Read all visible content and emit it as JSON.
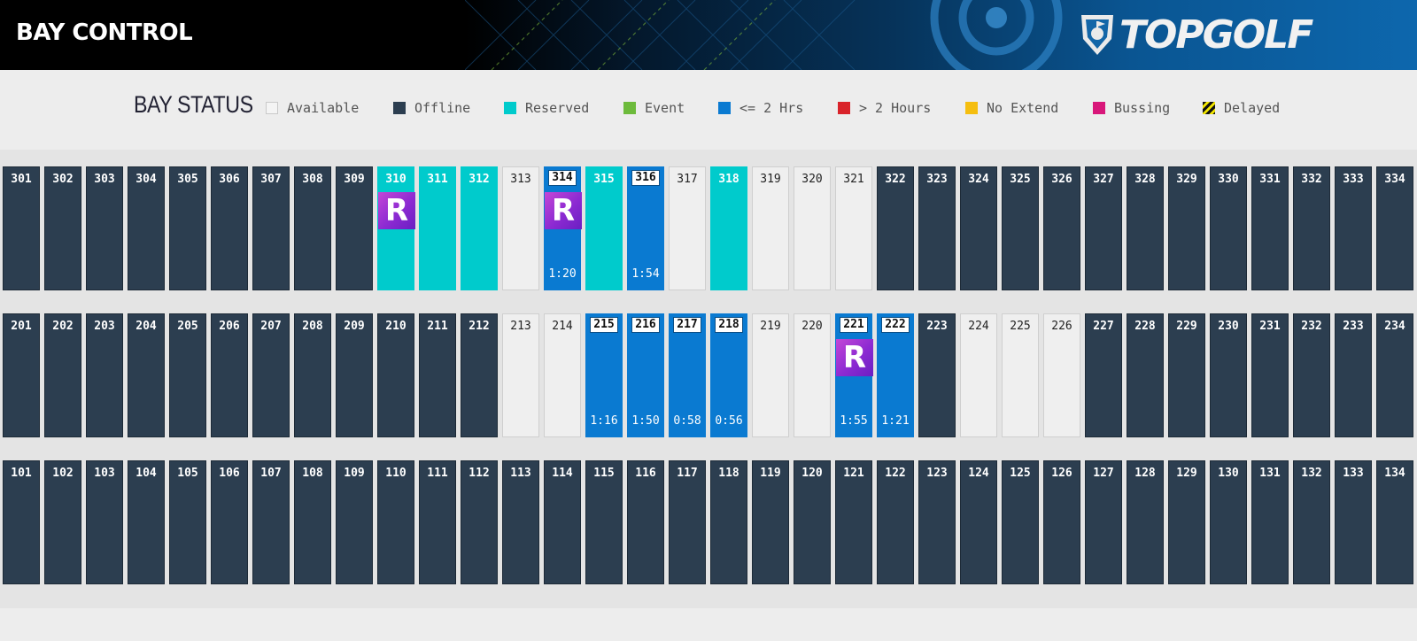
{
  "header": {
    "title": "BAY CONTROL",
    "logo_text": "TOPGOLF"
  },
  "legend": {
    "title": "BAY STATUS",
    "items": [
      {
        "label": "Available",
        "color": "#f4f4f4"
      },
      {
        "label": "Offline",
        "color": "#2c3e50"
      },
      {
        "label": "Reserved",
        "color": "#00cbcc"
      },
      {
        "label": "Event",
        "color": "#6dbb3c"
      },
      {
        "label": "<= 2 Hrs",
        "color": "#0a7ad1"
      },
      {
        "label": "> 2 Hours",
        "color": "#d9232a"
      },
      {
        "label": "No Extend",
        "color": "#f5be0f"
      },
      {
        "label": "Bussing",
        "color": "#d8177a"
      },
      {
        "label": "Delayed",
        "color": "striped-black-yellow"
      }
    ]
  },
  "rows": [
    {
      "bays": [
        {
          "num": "301",
          "status": "offline"
        },
        {
          "num": "302",
          "status": "offline"
        },
        {
          "num": "303",
          "status": "offline"
        },
        {
          "num": "304",
          "status": "offline"
        },
        {
          "num": "305",
          "status": "offline"
        },
        {
          "num": "306",
          "status": "offline"
        },
        {
          "num": "307",
          "status": "offline"
        },
        {
          "num": "308",
          "status": "offline"
        },
        {
          "num": "309",
          "status": "offline"
        },
        {
          "num": "310",
          "status": "reserved",
          "badge": "R"
        },
        {
          "num": "311",
          "status": "reserved"
        },
        {
          "num": "312",
          "status": "reserved"
        },
        {
          "num": "313",
          "status": "available"
        },
        {
          "num": "314",
          "status": "lt2",
          "badge": "R",
          "timer": "1:20",
          "boxed": true
        },
        {
          "num": "315",
          "status": "reserved"
        },
        {
          "num": "316",
          "status": "lt2",
          "timer": "1:54",
          "boxed": true
        },
        {
          "num": "317",
          "status": "available"
        },
        {
          "num": "318",
          "status": "reserved"
        },
        {
          "num": "319",
          "status": "available"
        },
        {
          "num": "320",
          "status": "available"
        },
        {
          "num": "321",
          "status": "available"
        },
        {
          "num": "322",
          "status": "offline"
        },
        {
          "num": "323",
          "status": "offline"
        },
        {
          "num": "324",
          "status": "offline"
        },
        {
          "num": "325",
          "status": "offline"
        },
        {
          "num": "326",
          "status": "offline"
        },
        {
          "num": "327",
          "status": "offline"
        },
        {
          "num": "328",
          "status": "offline"
        },
        {
          "num": "329",
          "status": "offline"
        },
        {
          "num": "330",
          "status": "offline"
        },
        {
          "num": "331",
          "status": "offline"
        },
        {
          "num": "332",
          "status": "offline"
        },
        {
          "num": "333",
          "status": "offline"
        },
        {
          "num": "334",
          "status": "offline"
        }
      ]
    },
    {
      "bays": [
        {
          "num": "201",
          "status": "offline"
        },
        {
          "num": "202",
          "status": "offline"
        },
        {
          "num": "203",
          "status": "offline"
        },
        {
          "num": "204",
          "status": "offline"
        },
        {
          "num": "205",
          "status": "offline"
        },
        {
          "num": "206",
          "status": "offline"
        },
        {
          "num": "207",
          "status": "offline"
        },
        {
          "num": "208",
          "status": "offline"
        },
        {
          "num": "209",
          "status": "offline"
        },
        {
          "num": "210",
          "status": "offline"
        },
        {
          "num": "211",
          "status": "offline"
        },
        {
          "num": "212",
          "status": "offline"
        },
        {
          "num": "213",
          "status": "available"
        },
        {
          "num": "214",
          "status": "available"
        },
        {
          "num": "215",
          "status": "lt2",
          "timer": "1:16",
          "boxed": true
        },
        {
          "num": "216",
          "status": "lt2",
          "timer": "1:50",
          "boxed": true
        },
        {
          "num": "217",
          "status": "lt2",
          "timer": "0:58",
          "boxed": true
        },
        {
          "num": "218",
          "status": "lt2",
          "timer": "0:56",
          "boxed": true
        },
        {
          "num": "219",
          "status": "available"
        },
        {
          "num": "220",
          "status": "available"
        },
        {
          "num": "221",
          "status": "lt2",
          "badge": "R",
          "timer": "1:55",
          "boxed": true
        },
        {
          "num": "222",
          "status": "lt2",
          "timer": "1:21",
          "boxed": true
        },
        {
          "num": "223",
          "status": "offline"
        },
        {
          "num": "224",
          "status": "available"
        },
        {
          "num": "225",
          "status": "available"
        },
        {
          "num": "226",
          "status": "available"
        },
        {
          "num": "227",
          "status": "offline"
        },
        {
          "num": "228",
          "status": "offline"
        },
        {
          "num": "229",
          "status": "offline"
        },
        {
          "num": "230",
          "status": "offline"
        },
        {
          "num": "231",
          "status": "offline"
        },
        {
          "num": "232",
          "status": "offline"
        },
        {
          "num": "233",
          "status": "offline"
        },
        {
          "num": "234",
          "status": "offline"
        }
      ]
    },
    {
      "bays": [
        {
          "num": "101",
          "status": "offline"
        },
        {
          "num": "102",
          "status": "offline"
        },
        {
          "num": "103",
          "status": "offline"
        },
        {
          "num": "104",
          "status": "offline"
        },
        {
          "num": "105",
          "status": "offline"
        },
        {
          "num": "106",
          "status": "offline"
        },
        {
          "num": "107",
          "status": "offline"
        },
        {
          "num": "108",
          "status": "offline"
        },
        {
          "num": "109",
          "status": "offline"
        },
        {
          "num": "110",
          "status": "offline"
        },
        {
          "num": "111",
          "status": "offline"
        },
        {
          "num": "112",
          "status": "offline"
        },
        {
          "num": "113",
          "status": "offline"
        },
        {
          "num": "114",
          "status": "offline"
        },
        {
          "num": "115",
          "status": "offline"
        },
        {
          "num": "116",
          "status": "offline"
        },
        {
          "num": "117",
          "status": "offline"
        },
        {
          "num": "118",
          "status": "offline"
        },
        {
          "num": "119",
          "status": "offline"
        },
        {
          "num": "120",
          "status": "offline"
        },
        {
          "num": "121",
          "status": "offline"
        },
        {
          "num": "122",
          "status": "offline"
        },
        {
          "num": "123",
          "status": "offline"
        },
        {
          "num": "124",
          "status": "offline"
        },
        {
          "num": "125",
          "status": "offline"
        },
        {
          "num": "126",
          "status": "offline"
        },
        {
          "num": "127",
          "status": "offline"
        },
        {
          "num": "128",
          "status": "offline"
        },
        {
          "num": "129",
          "status": "offline"
        },
        {
          "num": "130",
          "status": "offline"
        },
        {
          "num": "131",
          "status": "offline"
        },
        {
          "num": "132",
          "status": "offline"
        },
        {
          "num": "133",
          "status": "offline"
        },
        {
          "num": "134",
          "status": "offline"
        }
      ]
    }
  ]
}
